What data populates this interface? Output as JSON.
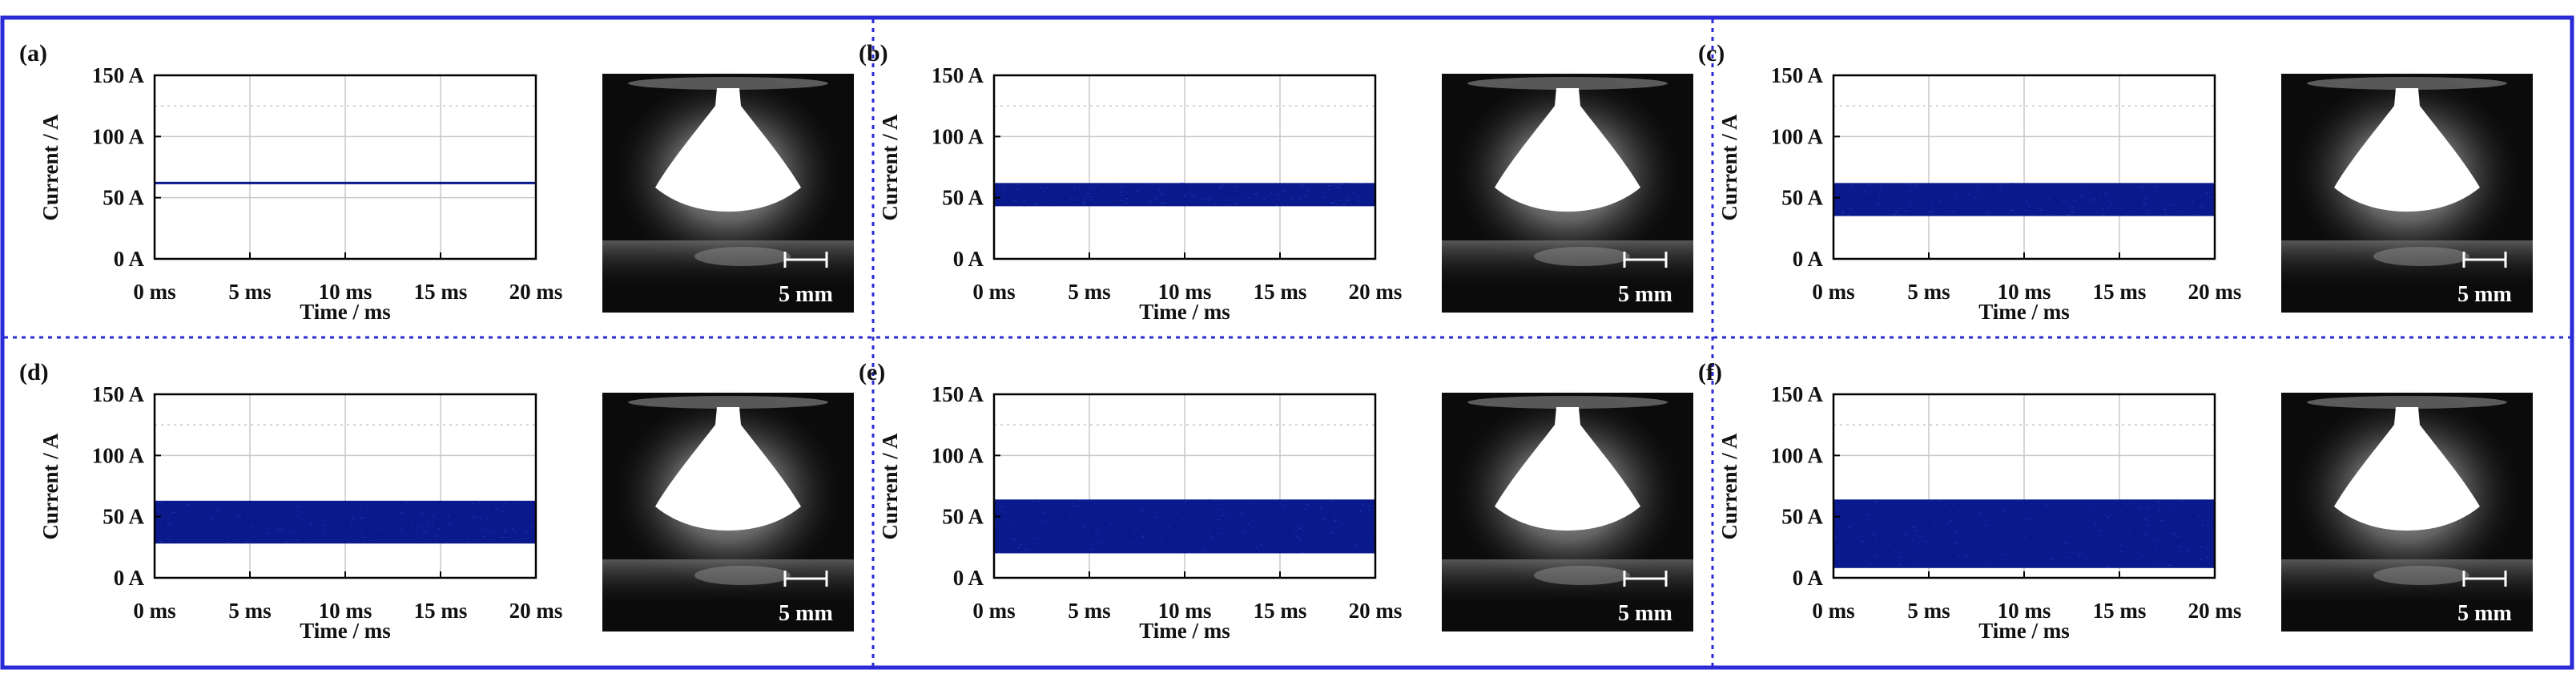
{
  "colors": {
    "border": "#2a2ad6",
    "divider": "#2a2ad6",
    "series": "#0a1a8c",
    "grid": "#c8c8c8",
    "axis": "#000000",
    "photo_bg": "#0b0b0b"
  },
  "scale_bar_label": "5 mm",
  "chart_data": [
    {
      "panel": "(a)",
      "type": "area",
      "xlabel": "Time / ms",
      "ylabel": "Current / A",
      "xlim": [
        0,
        20
      ],
      "ylim": [
        0,
        150
      ],
      "xticks": [
        "0 ms",
        "5 ms",
        "10 ms",
        "15 ms",
        "20 ms"
      ],
      "yticks": [
        "0 A",
        "50 A",
        "100 A",
        "150 A"
      ],
      "band": {
        "min": 61,
        "max": 63
      },
      "grid": true
    },
    {
      "panel": "(b)",
      "type": "area",
      "xlabel": "Time / ms",
      "ylabel": "Current / A",
      "xlim": [
        0,
        20
      ],
      "ylim": [
        0,
        150
      ],
      "xticks": [
        "0 ms",
        "5 ms",
        "10 ms",
        "15 ms",
        "20 ms"
      ],
      "yticks": [
        "0 A",
        "50 A",
        "100 A",
        "150 A"
      ],
      "band": {
        "min": 43,
        "max": 62
      },
      "grid": true
    },
    {
      "panel": "(c)",
      "type": "area",
      "xlabel": "Time / ms",
      "ylabel": "Current / A",
      "xlim": [
        0,
        20
      ],
      "ylim": [
        0,
        150
      ],
      "xticks": [
        "0 ms",
        "5 ms",
        "10 ms",
        "15 ms",
        "20 ms"
      ],
      "yticks": [
        "0 A",
        "50 A",
        "100 A",
        "150 A"
      ],
      "band": {
        "min": 35,
        "max": 62
      },
      "grid": true
    },
    {
      "panel": "(d)",
      "type": "area",
      "xlabel": "Time / ms",
      "ylabel": "Current / A",
      "xlim": [
        0,
        20
      ],
      "ylim": [
        0,
        150
      ],
      "xticks": [
        "0 ms",
        "5 ms",
        "10 ms",
        "15 ms",
        "20 ms"
      ],
      "yticks": [
        "0 A",
        "50 A",
        "100 A",
        "150 A"
      ],
      "band": {
        "min": 28,
        "max": 63
      },
      "grid": true
    },
    {
      "panel": "(e)",
      "type": "area",
      "xlabel": "Time / ms",
      "ylabel": "Current / A",
      "xlim": [
        0,
        20
      ],
      "ylim": [
        0,
        150
      ],
      "xticks": [
        "0 ms",
        "5 ms",
        "10 ms",
        "15 ms",
        "20 ms"
      ],
      "yticks": [
        "0 A",
        "50 A",
        "100 A",
        "150 A"
      ],
      "band": {
        "min": 20,
        "max": 64
      },
      "grid": true
    },
    {
      "panel": "(f)",
      "type": "area",
      "xlabel": "Time / ms",
      "ylabel": "Current / A",
      "xlim": [
        0,
        20
      ],
      "ylim": [
        0,
        150
      ],
      "xticks": [
        "0 ms",
        "5 ms",
        "10 ms",
        "15 ms",
        "20 ms"
      ],
      "yticks": [
        "0 A",
        "50 A",
        "100 A",
        "150 A"
      ],
      "band": {
        "min": 8,
        "max": 64
      },
      "grid": true
    }
  ]
}
